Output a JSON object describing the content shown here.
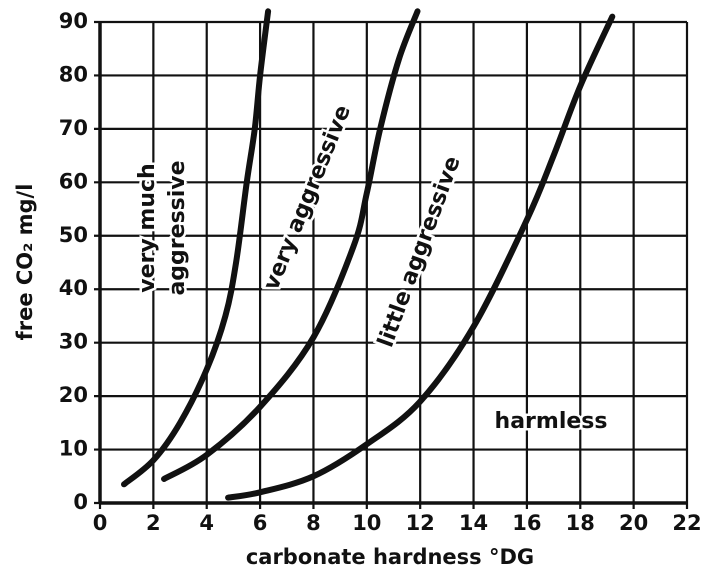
{
  "chart_data": {
    "type": "line",
    "xlabel": "carbonate hardness °DG",
    "ylabel": "free CO₂ mg/l",
    "xlim": [
      0,
      22
    ],
    "ylim": [
      0,
      90
    ],
    "xticks": [
      0,
      2,
      4,
      6,
      8,
      10,
      12,
      14,
      16,
      18,
      20,
      22
    ],
    "yticks": [
      0,
      10,
      20,
      30,
      40,
      50,
      60,
      70,
      80,
      90
    ],
    "grid": true,
    "series": [
      {
        "color": "#111111",
        "x": [
          0.9,
          2,
          3,
          4,
          4.7,
          5.1,
          5.5,
          5.8,
          6.0,
          6.3
        ],
        "values": [
          3.5,
          8,
          15,
          25,
          35,
          45,
          60,
          70,
          80,
          92
        ]
      },
      {
        "color": "#111111",
        "x": [
          2.4,
          4,
          6,
          8,
          9.5,
          10,
          10.5,
          11.2,
          11.9
        ],
        "values": [
          4.5,
          9,
          18,
          31,
          48,
          58,
          70,
          83,
          92
        ]
      },
      {
        "color": "#111111",
        "x": [
          4.8,
          6,
          8,
          10,
          12,
          14,
          16,
          17,
          18,
          19.2
        ],
        "values": [
          1,
          2,
          5,
          11,
          19,
          33,
          53,
          65,
          78,
          91
        ]
      }
    ],
    "annotations": [
      "very much",
      "aggressive",
      "very aggressive",
      "little aggressive",
      "harmless"
    ]
  }
}
